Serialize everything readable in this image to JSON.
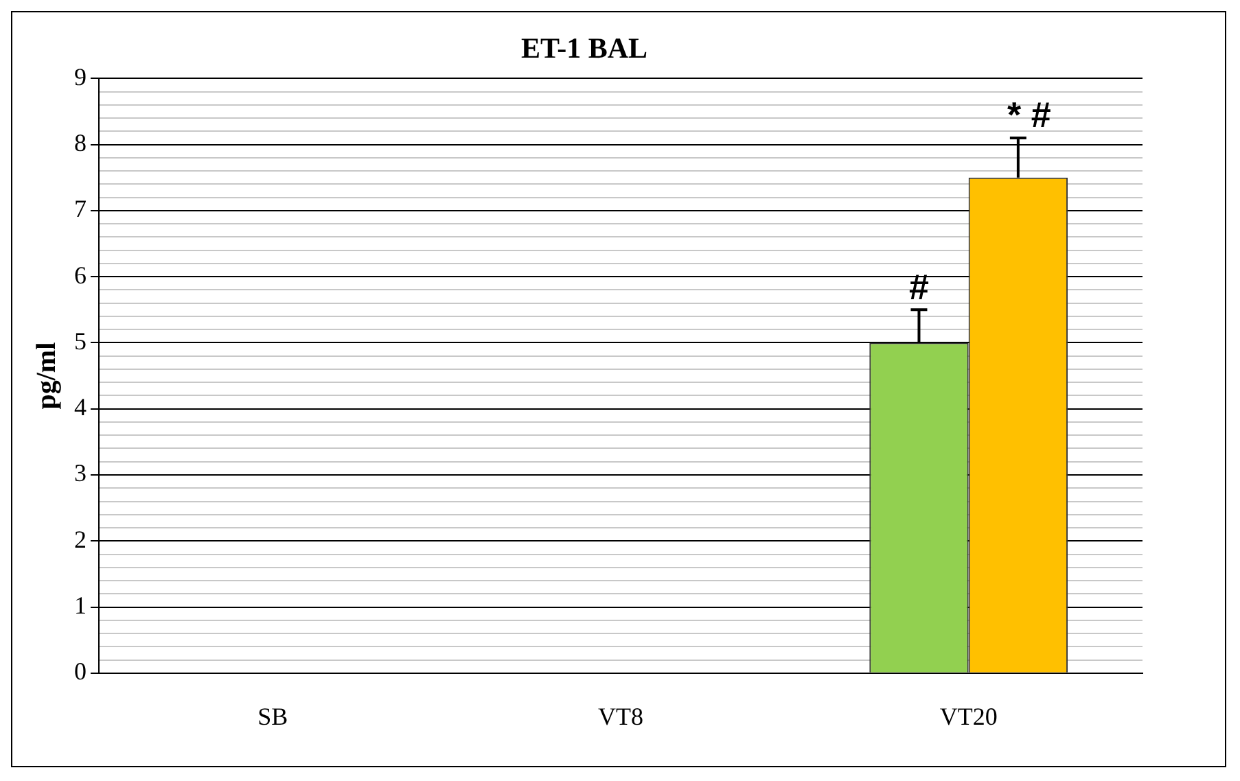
{
  "chart_data": {
    "type": "bar",
    "title": "ET-1 BAL",
    "ylabel": "pg/ml",
    "categories": [
      "SB",
      "VT8",
      "VT20"
    ],
    "series": [
      {
        "color": "#92d050",
        "values": [
          null,
          null,
          5.0
        ],
        "errors": [
          null,
          null,
          [
            5.0,
            5.5
          ]
        ]
      },
      {
        "color": "#ffc000",
        "values": [
          null,
          null,
          7.5
        ],
        "errors": [
          null,
          null,
          [
            7.5,
            8.1
          ]
        ]
      }
    ],
    "ylim": [
      0,
      9
    ],
    "yticks": [
      0,
      {
        "value": 0.2,
        "label": null
      },
      {
        "value": 0.4,
        "label": null
      },
      {
        "value": 0.6,
        "label": null
      },
      {
        "value": 0.8,
        "label": null
      },
      1,
      {
        "value": 1.2,
        "label": null
      },
      {
        "value": 1.4,
        "label": null
      },
      {
        "value": 1.6,
        "label": null
      },
      {
        "value": 1.8,
        "label": null
      },
      2,
      {
        "value": 2.2,
        "label": null
      },
      {
        "value": 2.4,
        "label": null
      },
      {
        "value": 2.6,
        "label": null
      },
      {
        "value": 2.8,
        "label": null
      },
      3,
      {
        "value": 3.2,
        "label": null
      },
      {
        "value": 3.4,
        "label": null
      },
      {
        "value": 3.6,
        "label": null
      },
      {
        "value": 3.8,
        "label": null
      },
      4,
      {
        "value": 4.2,
        "label": null
      },
      {
        "value": 4.4,
        "label": null
      },
      {
        "value": 4.6,
        "label": null
      },
      {
        "value": 4.8,
        "label": null
      },
      5,
      {
        "value": 5.2,
        "label": null
      },
      {
        "value": 5.4,
        "label": null
      },
      {
        "value": 5.6,
        "label": null
      },
      {
        "value": 5.8,
        "label": null
      },
      6,
      {
        "value": 6.2,
        "label": null
      },
      {
        "value": 6.4,
        "label": null
      },
      {
        "value": 6.6,
        "label": null
      },
      {
        "value": 6.8,
        "label": null
      },
      7,
      {
        "value": 7.2,
        "label": null
      },
      {
        "value": 7.4,
        "label": null
      },
      {
        "value": 7.6,
        "label": null
      },
      {
        "value": 7.8,
        "label": null
      },
      8,
      {
        "value": 8.2,
        "label": null
      },
      {
        "value": 8.4,
        "label": null
      },
      {
        "value": 8.6,
        "label": null
      },
      {
        "value": 8.8,
        "label": null
      },
      9
    ],
    "grid": "y",
    "legend": false,
    "annotations": [
      "#",
      "* #"
    ]
  }
}
